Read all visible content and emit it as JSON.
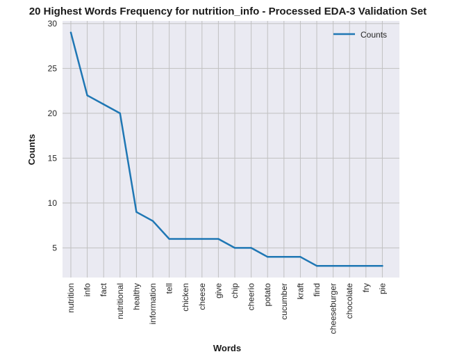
{
  "chart_data": {
    "type": "line",
    "title": "20 Highest Words Frequency for nutrition_info - Processed EDA-3 Validation Set",
    "xlabel": "Words",
    "ylabel": "Counts",
    "categories": [
      "nutrition",
      "info",
      "fact",
      "nutritional",
      "healthy",
      "information",
      "tell",
      "chicken",
      "cheese",
      "give",
      "chip",
      "cheerio",
      "potato",
      "cucumber",
      "kraft",
      "find",
      "cheeseburger",
      "chocolate",
      "fry",
      "pie"
    ],
    "series": [
      {
        "name": "Counts",
        "values": [
          29,
          22,
          21,
          20,
          9,
          8,
          6,
          6,
          6,
          6,
          5,
          5,
          4,
          4,
          4,
          3,
          3,
          3,
          3,
          3
        ],
        "color": "#1f77b4"
      }
    ],
    "ylim": [
      1.7,
      30.3
    ],
    "yticks": [
      5,
      10,
      15,
      20,
      25,
      30
    ],
    "grid": true,
    "legend_position": "top-right",
    "background_color": "#eaeaf2",
    "grid_color": "#c0c0c0"
  }
}
